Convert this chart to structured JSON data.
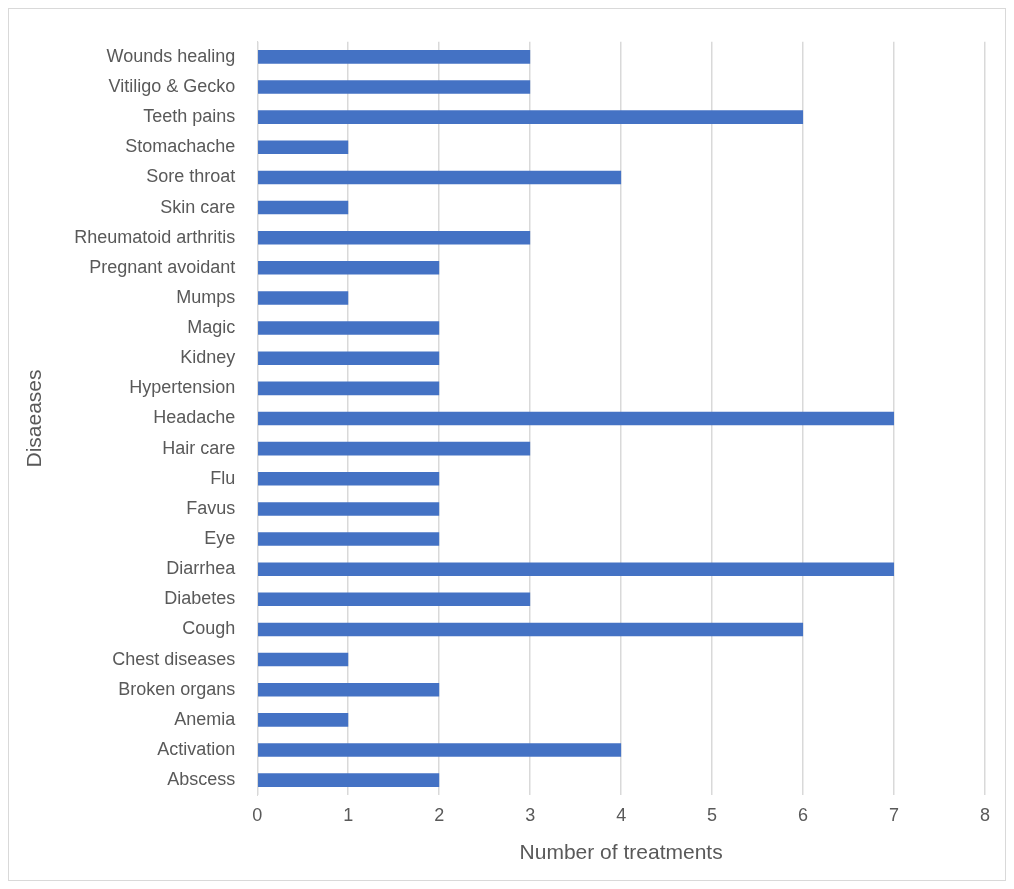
{
  "chart_data": {
    "type": "bar",
    "orientation": "horizontal",
    "xlabel": "Number of treatments",
    "ylabel": "Disaeases",
    "categories": [
      "Wounds healing",
      "Vitiligo & Gecko",
      "Teeth pains",
      "Stomachache",
      "Sore throat",
      "Skin care",
      "Rheumatoid arthritis",
      "Pregnant avoidant",
      "Mumps",
      "Magic",
      "Kidney",
      "Hypertension",
      "Headache",
      "Hair care",
      "Flu",
      "Favus",
      "Eye",
      "Diarrhea",
      "Diabetes",
      "Cough",
      "Chest diseases",
      "Broken organs",
      "Anemia",
      "Activation",
      "Abscess"
    ],
    "values": [
      3,
      3,
      6,
      1,
      4,
      1,
      3,
      2,
      1,
      2,
      2,
      2,
      7,
      3,
      2,
      2,
      2,
      7,
      3,
      6,
      1,
      2,
      1,
      4,
      2
    ],
    "color": "#4472c4",
    "xlim": [
      0,
      8
    ],
    "xticks": [
      0,
      1,
      2,
      3,
      4,
      5,
      6,
      7,
      8
    ],
    "grid": "x",
    "legend": false
  }
}
